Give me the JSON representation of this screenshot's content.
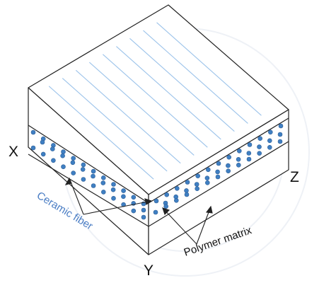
{
  "figure": {
    "axes": {
      "x": "X",
      "y": "Y",
      "z": "Z"
    },
    "annotations": {
      "ceramic_fiber": "Ceramic fiber",
      "polymer_matrix": "Polymer matrix"
    },
    "colors": {
      "fiber": "#3f7fc2",
      "fiber_outline": "#2f5f97",
      "fiber_lines": "#9cc3ea",
      "outline": "#222222",
      "ceramic_label": "#4a7dc4",
      "matrix_label": "#111111",
      "watermark": "#eef1f6"
    }
  }
}
